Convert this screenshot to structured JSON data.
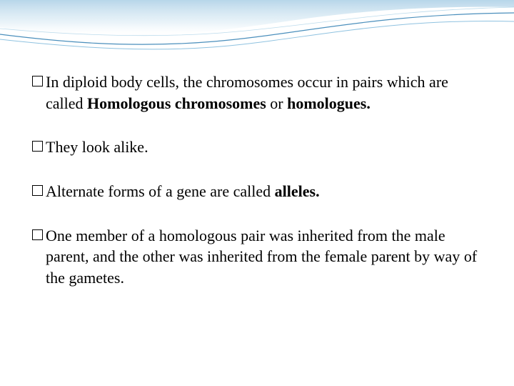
{
  "slide": {
    "bullets": [
      {
        "segments": [
          {
            "text": "In diploid body cells, the chromosomes occur in pairs which are called ",
            "bold": false
          },
          {
            "text": "Homologous chromosomes",
            "bold": true
          },
          {
            "text": " or ",
            "bold": false
          },
          {
            "text": "homologues.",
            "bold": true
          }
        ]
      },
      {
        "segments": [
          {
            "text": "They look alike.",
            "bold": false
          }
        ]
      },
      {
        "segments": [
          {
            "text": "Alternate forms of a gene are called ",
            "bold": false
          },
          {
            "text": "alleles.",
            "bold": true
          }
        ]
      },
      {
        "segments": [
          {
            "text": "One member of a homologous pair was inherited from the male parent, and the other was inherited from the female parent by way of the gametes.",
            "bold": false
          }
        ]
      }
    ]
  },
  "style": {
    "background_color": "#ffffff",
    "text_color": "#000000",
    "font_size": 22,
    "bullet_spacing": 32,
    "wave_colors": {
      "gradient_top": "#7db4d8",
      "gradient_mid": "#a8d0e6",
      "line1": "#2b7bb0",
      "line2": "#5fa8d3"
    }
  }
}
